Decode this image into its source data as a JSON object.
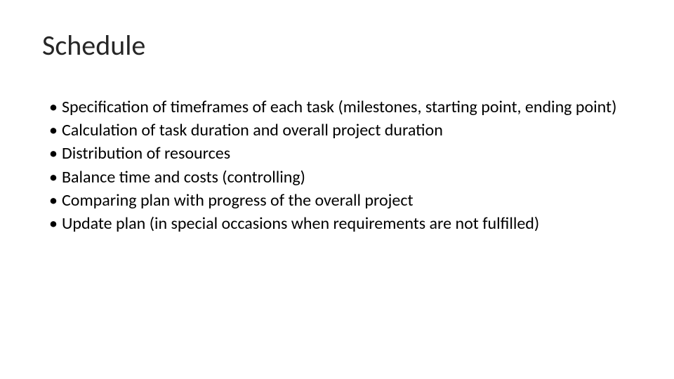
{
  "slide": {
    "title": "Schedule",
    "bullets": [
      "Specification of timeframes of each task (milestones, starting point, ending point)",
      "Calculation of task duration and overall project duration",
      "Distribution of resources",
      "Balance time and costs (controlling)",
      "Comparing plan with progress of the overall project",
      "Update plan (in special occasions when requirements are not fulfilled)"
    ],
    "colors": {
      "background": "#ffffff",
      "title_color": "#262626",
      "text_color": "#000000"
    },
    "typography": {
      "title_fontsize": 40,
      "body_fontsize": 24,
      "font_family": "Calibri"
    }
  }
}
